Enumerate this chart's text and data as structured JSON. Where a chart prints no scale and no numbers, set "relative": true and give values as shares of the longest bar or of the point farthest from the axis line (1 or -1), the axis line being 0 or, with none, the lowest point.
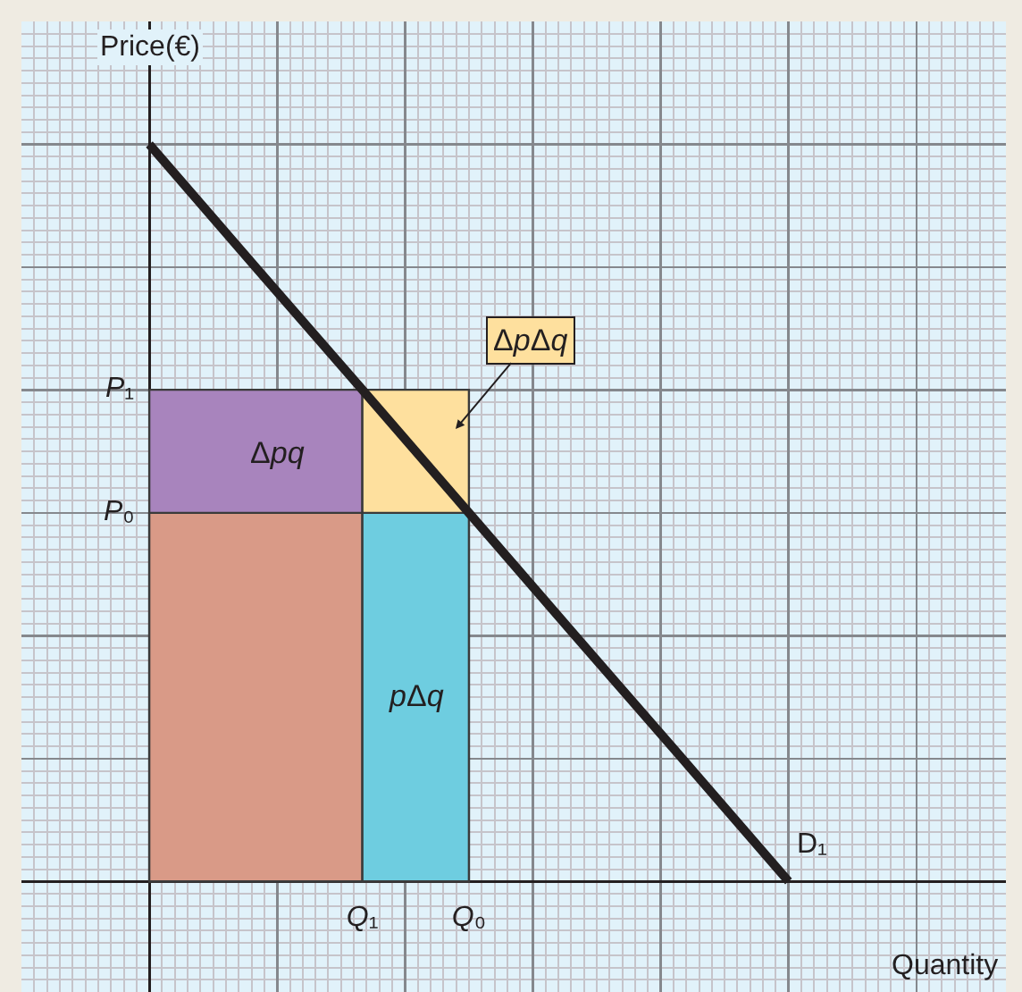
{
  "chart_data": {
    "type": "line",
    "relative": true,
    "xlabel": "Quantity",
    "ylabel": "Price(€)",
    "grid": true,
    "categories": [
      null,
      null,
      "Q₁",
      "Q₀",
      null,
      null,
      null
    ],
    "series": [
      {
        "type": "area",
        "color": "#a884bd",
        "values": [
          0.667,
          0.667,
          0.667,
          null,
          null,
          null,
          null
        ]
      },
      {
        "type": "area",
        "color": "#fee09e",
        "values": [
          null,
          null,
          0.667,
          0.667,
          null,
          null,
          null
        ]
      },
      {
        "type": "area",
        "color": "#d99a87",
        "values": [
          0.5,
          0.5,
          0.5,
          null,
          null,
          null,
          null
        ]
      },
      {
        "type": "area",
        "color": "#6ecde0",
        "values": [
          null,
          null,
          0.5,
          0.5,
          null,
          null,
          null
        ]
      },
      {
        "name": "D₁",
        "color": "#231f20",
        "values": [
          1,
          0.833,
          0.667,
          0.5,
          0.333,
          0.167,
          0
        ]
      }
    ],
    "annotations": [
      "P₁",
      "P₀",
      "Δpq",
      "pΔq",
      "ΔpΔq"
    ]
  }
}
